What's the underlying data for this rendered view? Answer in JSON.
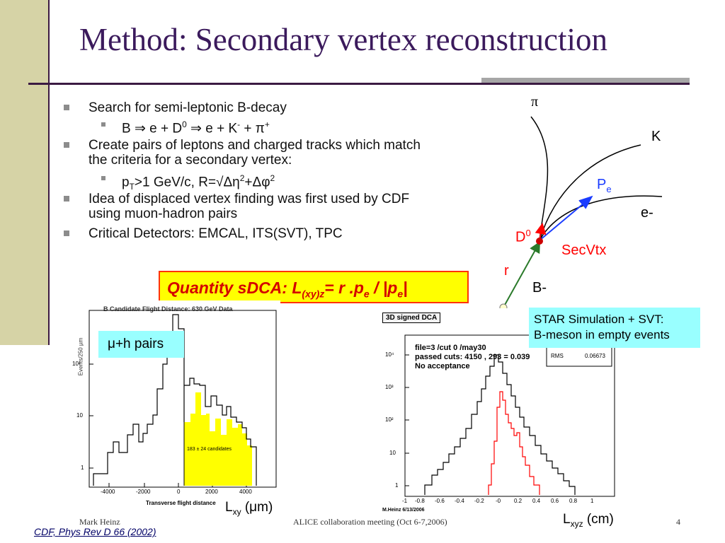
{
  "slide": {
    "title": "Method: Secondary vertex reconstruction",
    "page_number": "4",
    "footer_author": "Mark Heinz",
    "footer_center": "ALICE collaboration meeting (Oct 6-7,2006)",
    "citation": "CDF, Phys Rev D 66 (2002)"
  },
  "bullets": {
    "b1": "Search for semi-leptonic B-decay",
    "b1_sub": "B ⇒ e + D",
    "b1_sub_sup0": "0",
    "b1_sub_mid": " ⇒ e + K",
    "b1_sub_supminus": "-",
    "b1_sub_end": " + π",
    "b1_sub_supplus": "+",
    "b2_line1": "Create pairs of leptons and charged tracks which match",
    "b2_line2": "the criteria for a secondary vertex:",
    "b2_sub_p": "p",
    "b2_sub_T": "T",
    "b2_sub_rest": ">1 GeV/c, R=√Δη",
    "b2_sub_sq1": "2",
    "b2_sub_plus": "+Δφ",
    "b2_sub_sq2": "2",
    "b3_line1": "Idea of displaced vertex finding was first used by CDF",
    "b3_line2": "using muon-hadron pairs",
    "b4": "Critical Detectors: EMCAL, ITS(SVT), TPC"
  },
  "quantity": {
    "pre": "Quantity sDCA: L",
    "sub": "(xy)z",
    "post": "= r .p",
    "sub_e": "e",
    "slash": " / |p",
    "sub_e2": "e",
    "end": "|"
  },
  "diagram": {
    "pi": "π",
    "k": "K",
    "pe": "P",
    "pe_sub": "e",
    "e_minus": "e-",
    "d0": "D",
    "d0_sup": "0",
    "secvtx": "SecVtx",
    "r": "r",
    "b_minus": "B-"
  },
  "star_box": {
    "line1": "STAR Simulation + SVT:",
    "line2": "B-meson in empty events"
  },
  "left_plot": {
    "title": "B Candidate Flight Distance: 630 GeV Data",
    "ylabel": "Events/250 µm",
    "xlabel": "Transverse flight distance",
    "yticks": [
      "10²",
      "10",
      "1"
    ],
    "xticks": [
      "-4000",
      "-2000",
      "0",
      "2000",
      "4000"
    ],
    "candidates": "183 ± 24 candidates",
    "pairs_label": "μ+h pairs",
    "axis_unit_pre": "L",
    "axis_unit_sub": "xy",
    "axis_unit_post": " (μm)",
    "colors": {
      "fill": "#ffff00",
      "line": "#000000"
    }
  },
  "right_plot": {
    "title": "3D signed DCA",
    "info1": "file=3 /cut 0 /may30",
    "info2": "passed cuts: 4150 , 293 = 0.039",
    "info3": "No acceptance",
    "rms_label": "RMS",
    "rms_value": "0.06673",
    "yticks": [
      "10⁴",
      "10³",
      "10²",
      "10",
      "1"
    ],
    "xticks": [
      "-1",
      "-0.8",
      "-0.6",
      "-0.4",
      "-0.2",
      "-0",
      "0.2",
      "0.4",
      "0.6",
      "0.8",
      "1"
    ],
    "credit": "M.Heinz 6/13/2006",
    "axis_unit_pre": "L",
    "axis_unit_sub": "xyz",
    "axis_unit_post": " (cm)",
    "colors": {
      "all": "#000000",
      "passed": "#ff0000"
    }
  }
}
